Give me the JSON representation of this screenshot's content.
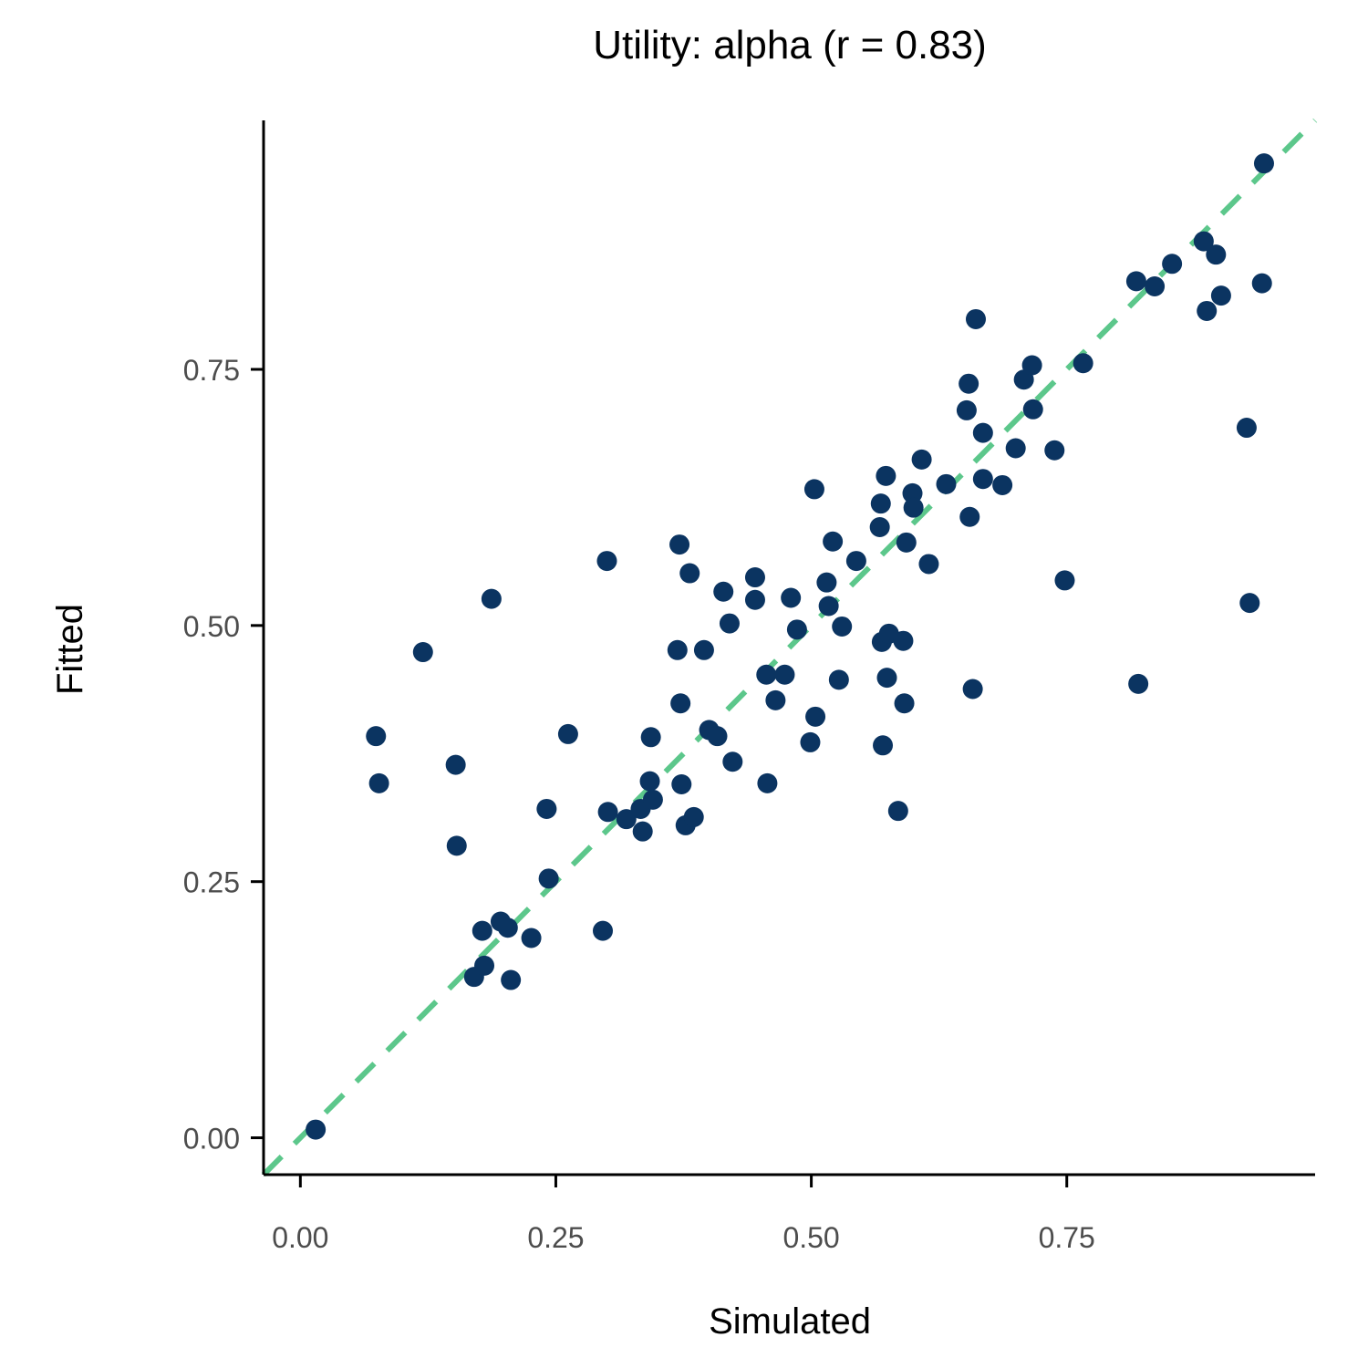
{
  "chart_data": {
    "type": "scatter",
    "title": "Utility: alpha (r = 0.83)",
    "xlabel": "Simulated",
    "ylabel": "Fitted",
    "xlim": [
      -0.036,
      0.993
    ],
    "ylim": [
      -0.036,
      0.993
    ],
    "x_ticks": [
      0.0,
      0.25,
      0.5,
      0.75
    ],
    "x_tick_labels": [
      "0.00",
      "0.25",
      "0.50",
      "0.75"
    ],
    "y_ticks": [
      0.0,
      0.25,
      0.5,
      0.75
    ],
    "y_tick_labels": [
      "0.00",
      "0.25",
      "0.50",
      "0.75"
    ],
    "grid": false,
    "legend": "none",
    "colors": {
      "points": "#0b3461",
      "reference_line": "#5cc78b",
      "axis": "#000000",
      "tick_label": "#4d4d4d"
    },
    "reference_line": {
      "style": "dashed",
      "from": [
        -0.036,
        -0.036
      ],
      "to": [
        0.993,
        0.993
      ]
    },
    "series": [
      {
        "points": [
          [
            0.015,
            0.008
          ],
          [
            0.074,
            0.392
          ],
          [
            0.077,
            0.346
          ],
          [
            0.12,
            0.474
          ],
          [
            0.152,
            0.364
          ],
          [
            0.153,
            0.285
          ],
          [
            0.17,
            0.157
          ],
          [
            0.178,
            0.202
          ],
          [
            0.18,
            0.168
          ],
          [
            0.187,
            0.526
          ],
          [
            0.196,
            0.211
          ],
          [
            0.203,
            0.205
          ],
          [
            0.206,
            0.154
          ],
          [
            0.226,
            0.195
          ],
          [
            0.241,
            0.321
          ],
          [
            0.243,
            0.253
          ],
          [
            0.262,
            0.394
          ],
          [
            0.296,
            0.202
          ],
          [
            0.3,
            0.563
          ],
          [
            0.301,
            0.318
          ],
          [
            0.319,
            0.311
          ],
          [
            0.333,
            0.321
          ],
          [
            0.335,
            0.299
          ],
          [
            0.342,
            0.348
          ],
          [
            0.343,
            0.391
          ],
          [
            0.345,
            0.33
          ],
          [
            0.369,
            0.476
          ],
          [
            0.371,
            0.579
          ],
          [
            0.372,
            0.424
          ],
          [
            0.373,
            0.345
          ],
          [
            0.377,
            0.305
          ],
          [
            0.381,
            0.551
          ],
          [
            0.385,
            0.313
          ],
          [
            0.395,
            0.476
          ],
          [
            0.4,
            0.398
          ],
          [
            0.408,
            0.392
          ],
          [
            0.414,
            0.533
          ],
          [
            0.42,
            0.502
          ],
          [
            0.423,
            0.367
          ],
          [
            0.445,
            0.547
          ],
          [
            0.445,
            0.525
          ],
          [
            0.456,
            0.452
          ],
          [
            0.457,
            0.346
          ],
          [
            0.465,
            0.427
          ],
          [
            0.474,
            0.452
          ],
          [
            0.48,
            0.527
          ],
          [
            0.486,
            0.496
          ],
          [
            0.499,
            0.386
          ],
          [
            0.503,
            0.633
          ],
          [
            0.504,
            0.411
          ],
          [
            0.515,
            0.542
          ],
          [
            0.517,
            0.519
          ],
          [
            0.521,
            0.582
          ],
          [
            0.527,
            0.447
          ],
          [
            0.53,
            0.499
          ],
          [
            0.544,
            0.563
          ],
          [
            0.567,
            0.596
          ],
          [
            0.568,
            0.619
          ],
          [
            0.569,
            0.484
          ],
          [
            0.57,
            0.383
          ],
          [
            0.573,
            0.646
          ],
          [
            0.574,
            0.449
          ],
          [
            0.576,
            0.492
          ],
          [
            0.585,
            0.319
          ],
          [
            0.59,
            0.485
          ],
          [
            0.591,
            0.424
          ],
          [
            0.593,
            0.581
          ],
          [
            0.599,
            0.629
          ],
          [
            0.6,
            0.615
          ],
          [
            0.608,
            0.662
          ],
          [
            0.615,
            0.56
          ],
          [
            0.632,
            0.638
          ],
          [
            0.652,
            0.71
          ],
          [
            0.654,
            0.736
          ],
          [
            0.655,
            0.606
          ],
          [
            0.658,
            0.438
          ],
          [
            0.661,
            0.799
          ],
          [
            0.668,
            0.688
          ],
          [
            0.668,
            0.643
          ],
          [
            0.687,
            0.637
          ],
          [
            0.7,
            0.673
          ],
          [
            0.708,
            0.74
          ],
          [
            0.716,
            0.754
          ],
          [
            0.717,
            0.711
          ],
          [
            0.738,
            0.671
          ],
          [
            0.748,
            0.544
          ],
          [
            0.766,
            0.756
          ],
          [
            0.818,
            0.836
          ],
          [
            0.82,
            0.443
          ],
          [
            0.836,
            0.831
          ],
          [
            0.853,
            0.853
          ],
          [
            0.884,
            0.875
          ],
          [
            0.887,
            0.807
          ],
          [
            0.896,
            0.862
          ],
          [
            0.901,
            0.822
          ],
          [
            0.926,
            0.693
          ],
          [
            0.929,
            0.522
          ],
          [
            0.941,
            0.834
          ],
          [
            0.943,
            0.951
          ]
        ]
      }
    ]
  }
}
